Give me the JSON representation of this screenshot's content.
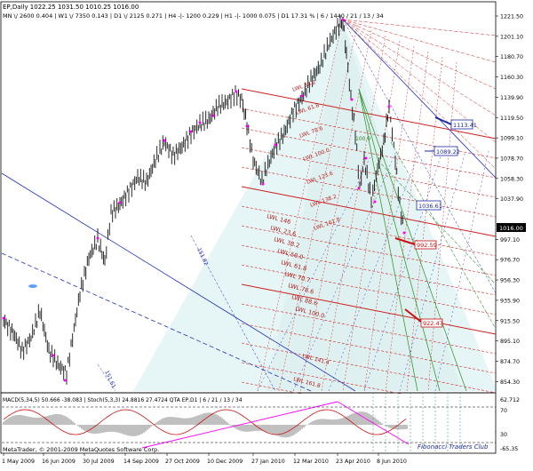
{
  "header": {
    "symbol_line": "EP,Daily  1022.25 1031.50 1010.25 1016.00",
    "info_line": "MN \\/ 2600   0.404 | W1 \\/ 7350   0.143 | D1 \\/ 2125   0.271 | H4 -|- 1200   0.229 | H1 -|- 1000   0.075 | D1  17.31 % | 6 / 1440 / 21 / 13 / 34"
  },
  "price_axis": {
    "ticks": [
      "1221.50",
      "1201.10",
      "1180.70",
      "1160.30",
      "1139.90",
      "1119.50",
      "1099.10",
      "1078.70",
      "1058.30",
      "1037.90",
      "1016.00",
      "997.10",
      "976.70",
      "956.30",
      "935.90",
      "915.50",
      "895.10",
      "874.70",
      "854.30"
    ],
    "current_price": "1016.00"
  },
  "date_axis": {
    "ticks": [
      "1 May 2009",
      "16 Jun 2009",
      "30 Jul 2009",
      "14 Sep 2009",
      "27 Oct 2009",
      "10 Dec 2009",
      "27 Jan 2010",
      "12 Mar 2010",
      "23 Apr 2010",
      "8 Jun 2010"
    ]
  },
  "price_labels": {
    "lbl1": "1113.41",
    "lbl2": "1089.22",
    "lbl3": "1036.61",
    "lbl4": "992.59",
    "lbl5": "922.47"
  },
  "fib_labels": {
    "red_upper": [
      "LWL 38.2",
      "LWL 61.8",
      "LWL 78.6",
      "LWL 100.0",
      "LWL 123.6",
      "LWL 138.2",
      "LWL 161.8"
    ],
    "red_lower": [
      "LWL 146",
      "LWL 23.6",
      "LWL 38.2",
      "LWL 50.0",
      "LWL 61.8",
      "LWL 70.7",
      "LWL 78.6",
      "LWL 88.6",
      "LWL 100.0"
    ],
    "bottom_red": [
      "LWL 141.4",
      "LWL 161.8"
    ],
    "blue": [
      "151.82",
      "151.61"
    ],
    "green": [
      "100.0",
      "76.4"
    ]
  },
  "indicator": {
    "title": "MACD(5,34,5) 50.666 -38.083 | Stoch(5,3,3) 24.8816 27.4724  QTA EP,D1 | 6 / 21 / 13 / 34",
    "axis": [
      "62.712",
      "70",
      "30",
      "-65.35"
    ]
  },
  "footer": {
    "copyright": "MetaTrader, © 2001-2009 MetaQuotes Software Corp.",
    "watermark": "Fibonacci Traders Club"
  },
  "colors": {
    "accent_red": "#cc2020",
    "fib_blue": "#2030c0",
    "fib_green": "#3a9a3a",
    "magenta": "#ff00ff",
    "cyan_fill": "#e8f6f6"
  }
}
